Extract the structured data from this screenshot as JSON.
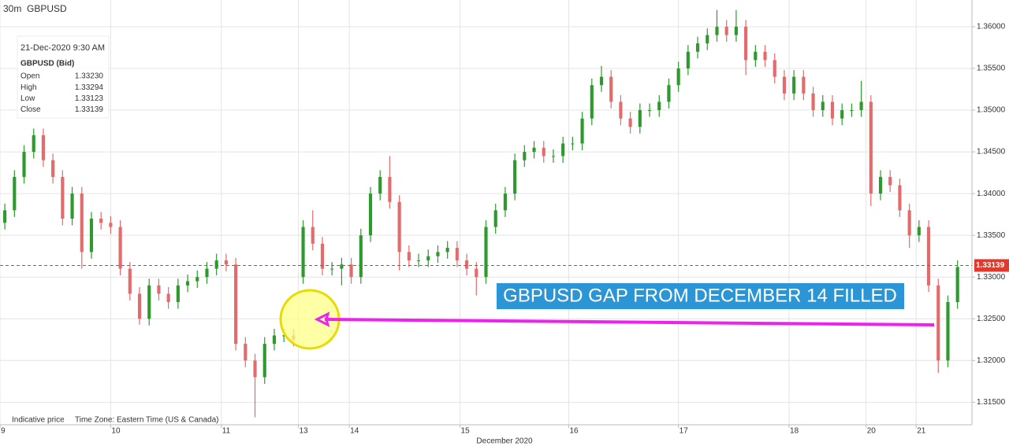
{
  "header": {
    "interval": "30m",
    "symbol": "GBPUSD"
  },
  "info": {
    "date": "21-Dec-2020 9:30 AM",
    "symbol": "GBPUSD (Bid)",
    "rows": [
      [
        "Open",
        "1.33230"
      ],
      [
        "High",
        "1.33294"
      ],
      [
        "Low",
        "1.33123"
      ],
      [
        "Close",
        "1.33139"
      ]
    ]
  },
  "footer": {
    "note": "Indicative price",
    "timezone": "Time Zone: Eastern Time (US & Canada)"
  },
  "chart_data": {
    "type": "candlestick",
    "x_label": "December 2020",
    "annotation": "GBPUSD GAP FROM DECEMBER 14 FILLED",
    "up_color": "#2e9a2e",
    "down_color": "#e36b6b",
    "last_price": 1.33139,
    "last_price_color": "#e03a2f",
    "grid": true,
    "xlim": [
      0,
      101
    ],
    "xticks": [
      {
        "value": 0,
        "label": "9"
      },
      {
        "value": 11.5,
        "label": "10"
      },
      {
        "value": 23,
        "label": "11"
      },
      {
        "value": 31,
        "label": "13"
      },
      {
        "value": 36.3,
        "label": "14"
      },
      {
        "value": 47.8,
        "label": "15"
      },
      {
        "value": 59.1,
        "label": "16"
      },
      {
        "value": 70.5,
        "label": "17"
      },
      {
        "value": 82,
        "label": "18"
      },
      {
        "value": 90,
        "label": "20"
      },
      {
        "value": 95.2,
        "label": "21"
      }
    ],
    "ylim": [
      1.3123,
      1.3632
    ],
    "yticks": [
      {
        "value": 1.315,
        "label": "1.31500"
      },
      {
        "value": 1.32,
        "label": "1.32000"
      },
      {
        "value": 1.325,
        "label": "1.32500"
      },
      {
        "value": 1.33,
        "label": "1.33000"
      },
      {
        "value": 1.335,
        "label": "1.33500"
      },
      {
        "value": 1.34,
        "label": "1.34000"
      },
      {
        "value": 1.345,
        "label": "1.34500"
      },
      {
        "value": 1.35,
        "label": "1.35000"
      },
      {
        "value": 1.355,
        "label": "1.35500"
      },
      {
        "value": 1.36,
        "label": "1.36000"
      }
    ],
    "open": [
      1.3365,
      1.338,
      1.342,
      1.345,
      1.347,
      1.344,
      1.342,
      1.337,
      1.34,
      1.333,
      1.337,
      1.3365,
      1.336,
      1.331,
      1.328,
      1.325,
      1.329,
      1.328,
      1.327,
      1.329,
      1.3295,
      1.33,
      1.331,
      1.332,
      1.3315,
      1.322,
      1.32,
      1.318,
      1.322,
      1.323,
      1.323,
      1.33,
      1.336,
      1.334,
      1.331,
      1.331,
      1.3315,
      1.33,
      1.335,
      1.34,
      1.342,
      1.339,
      1.333,
      1.332,
      1.332,
      1.3325,
      1.333,
      1.3335,
      1.332,
      1.331,
      1.33,
      1.336,
      1.338,
      1.34,
      1.344,
      1.345,
      1.3455,
      1.3445,
      1.3445,
      1.346,
      1.346,
      1.349,
      1.353,
      1.354,
      1.351,
      1.349,
      1.348,
      1.35,
      1.35,
      1.351,
      1.353,
      1.355,
      1.357,
      1.358,
      1.359,
      1.36,
      1.359,
      1.36,
      1.356,
      1.357,
      1.356,
      1.354,
      1.352,
      1.354,
      1.352,
      1.35,
      1.351,
      1.349,
      1.35,
      1.35,
      1.351,
      1.34,
      1.342,
      1.341,
      1.338,
      1.335,
      1.336,
      1.329,
      1.32,
      1.327
    ],
    "high": [
      1.3388,
      1.3428,
      1.3458,
      1.3478,
      1.3478,
      1.3448,
      1.3428,
      1.3408,
      1.3408,
      1.3378,
      1.3378,
      1.3373,
      1.3368,
      1.3318,
      1.3288,
      1.3298,
      1.3298,
      1.3288,
      1.3298,
      1.3303,
      1.3308,
      1.3318,
      1.3328,
      1.3328,
      1.3323,
      1.3228,
      1.3208,
      1.3228,
      1.3238,
      1.3238,
      1.3238,
      1.3368,
      1.338,
      1.3348,
      1.3318,
      1.3323,
      1.3323,
      1.3358,
      1.3408,
      1.3428,
      1.3445,
      1.3398,
      1.3338,
      1.3328,
      1.3333,
      1.3338,
      1.3343,
      1.3343,
      1.3328,
      1.3318,
      1.3368,
      1.3388,
      1.3408,
      1.3448,
      1.3458,
      1.3463,
      1.3463,
      1.3453,
      1.3468,
      1.3468,
      1.3498,
      1.3538,
      1.3553,
      1.3548,
      1.3518,
      1.3498,
      1.3508,
      1.3508,
      1.3518,
      1.3538,
      1.3558,
      1.3578,
      1.3588,
      1.3598,
      1.362,
      1.3608,
      1.362,
      1.3608,
      1.3578,
      1.3578,
      1.3568,
      1.3548,
      1.3548,
      1.3548,
      1.3528,
      1.3518,
      1.3518,
      1.3508,
      1.3508,
      1.3535,
      1.3518,
      1.3428,
      1.3428,
      1.3418,
      1.3388,
      1.3368,
      1.3368,
      1.3298,
      1.3278,
      1.332
    ],
    "low": [
      1.3357,
      1.3372,
      1.3412,
      1.3442,
      1.3432,
      1.3412,
      1.3362,
      1.3362,
      1.331,
      1.3322,
      1.3357,
      1.3352,
      1.3302,
      1.3272,
      1.3243,
      1.3242,
      1.3272,
      1.3262,
      1.3262,
      1.3282,
      1.3287,
      1.3292,
      1.3302,
      1.3307,
      1.3212,
      1.3192,
      1.3132,
      1.3172,
      1.3212,
      1.3222,
      1.3217,
      1.3292,
      1.3332,
      1.3302,
      1.3302,
      1.329,
      1.3292,
      1.3292,
      1.3342,
      1.3392,
      1.3382,
      1.3308,
      1.3312,
      1.3312,
      1.3312,
      1.3317,
      1.3322,
      1.3312,
      1.3302,
      1.3278,
      1.3292,
      1.3352,
      1.3372,
      1.3392,
      1.3432,
      1.3442,
      1.3437,
      1.3437,
      1.3437,
      1.3452,
      1.3452,
      1.3482,
      1.3522,
      1.3502,
      1.3482,
      1.3472,
      1.3472,
      1.3492,
      1.3492,
      1.3502,
      1.3522,
      1.3542,
      1.3562,
      1.3572,
      1.3582,
      1.3582,
      1.3582,
      1.3542,
      1.3552,
      1.3552,
      1.3532,
      1.3512,
      1.3512,
      1.3512,
      1.3492,
      1.3492,
      1.3482,
      1.3482,
      1.3492,
      1.3492,
      1.3385,
      1.3392,
      1.3402,
      1.3372,
      1.3335,
      1.3342,
      1.3282,
      1.3185,
      1.3192,
      1.3262
    ],
    "close": [
      1.338,
      1.342,
      1.345,
      1.347,
      1.344,
      1.342,
      1.337,
      1.34,
      1.333,
      1.337,
      1.3365,
      1.336,
      1.331,
      1.328,
      1.325,
      1.329,
      1.328,
      1.327,
      1.329,
      1.3295,
      1.33,
      1.331,
      1.332,
      1.3315,
      1.322,
      1.32,
      1.318,
      1.322,
      1.323,
      1.323,
      1.3225,
      1.336,
      1.334,
      1.331,
      1.331,
      1.3315,
      1.33,
      1.335,
      1.34,
      1.342,
      1.339,
      1.333,
      1.332,
      1.332,
      1.3325,
      1.333,
      1.3335,
      1.332,
      1.331,
      1.33,
      1.336,
      1.338,
      1.34,
      1.344,
      1.345,
      1.3455,
      1.3445,
      1.3445,
      1.346,
      1.346,
      1.349,
      1.353,
      1.354,
      1.351,
      1.349,
      1.348,
      1.35,
      1.35,
      1.351,
      1.353,
      1.355,
      1.357,
      1.358,
      1.359,
      1.36,
      1.359,
      1.36,
      1.356,
      1.357,
      1.356,
      1.354,
      1.352,
      1.354,
      1.352,
      1.35,
      1.351,
      1.349,
      1.35,
      1.35,
      1.351,
      1.34,
      1.342,
      1.341,
      1.338,
      1.335,
      1.336,
      1.329,
      1.32,
      1.327,
      1.3312
    ]
  }
}
